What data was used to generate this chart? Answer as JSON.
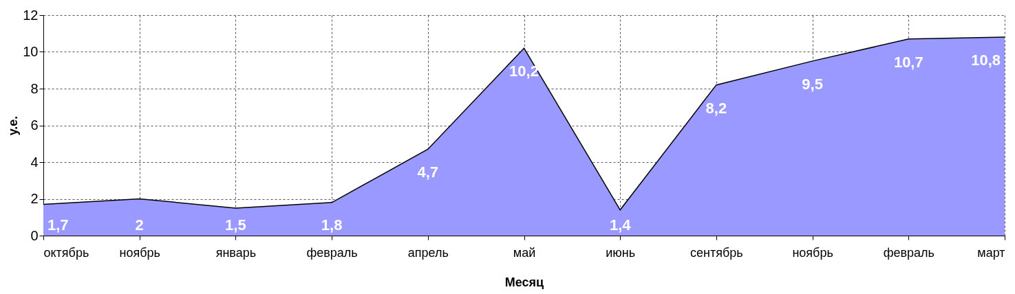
{
  "chart_data": {
    "type": "area",
    "xlabel": "Месяц",
    "ylabel": "у.е.",
    "categories": [
      "октябрь",
      "ноябрь",
      "январь",
      "февраль",
      "апрель",
      "май",
      "июнь",
      "сентябрь",
      "ноябрь",
      "февраль",
      "март"
    ],
    "series": [
      {
        "color": "#9999ff",
        "values": [
          1.7,
          2,
          1.5,
          1.8,
          4.7,
          10.2,
          1.4,
          8.2,
          9.5,
          10.7,
          10.8
        ],
        "value_labels": [
          "1,7",
          "2",
          "1,5",
          "1,8",
          "4,7",
          "10,2",
          "1,4",
          "8,2",
          "9,5",
          "10,7",
          "10,8"
        ]
      }
    ],
    "ylim": [
      0,
      12
    ],
    "yticks": [
      0,
      2,
      4,
      6,
      8,
      10,
      12
    ],
    "grid": true
  }
}
